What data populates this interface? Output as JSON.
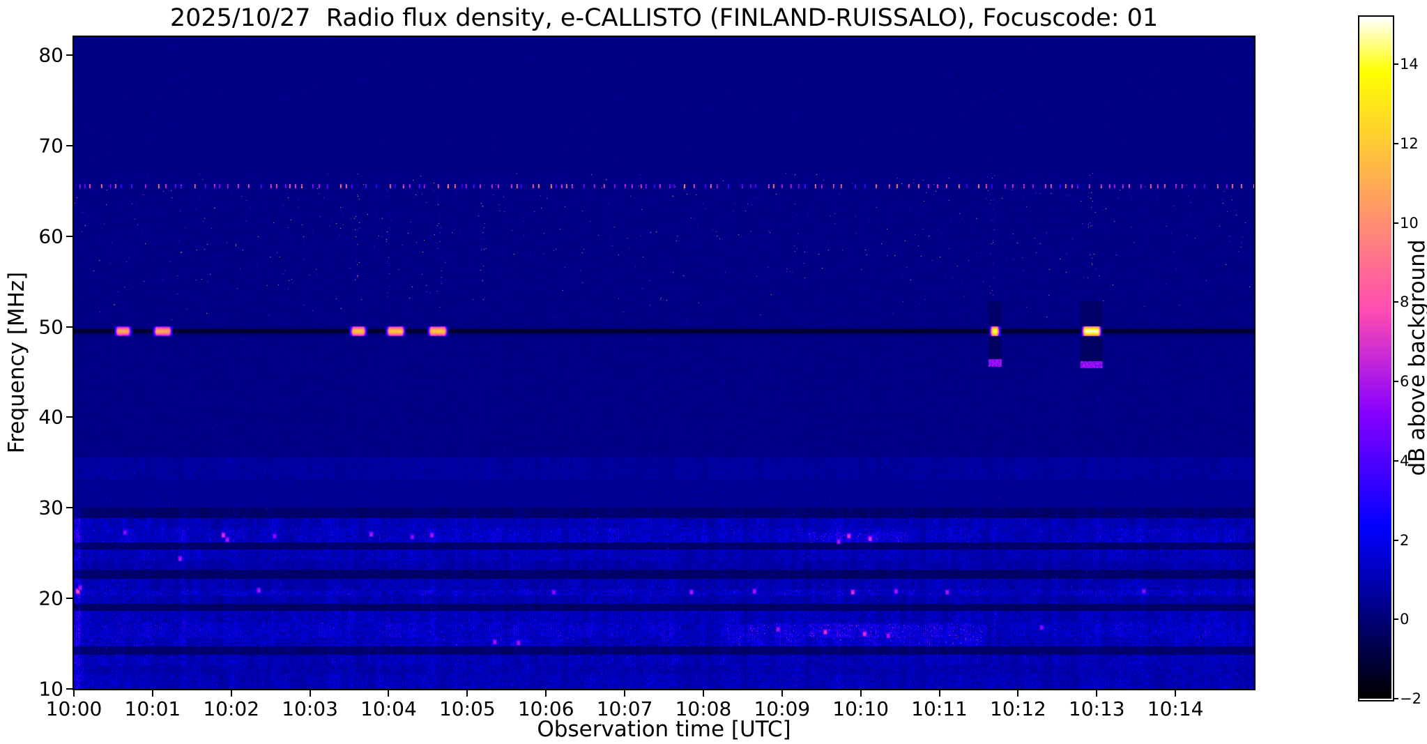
{
  "figure": {
    "title": "2025/10/27  Radio flux density, e-CALLISTO (FINLAND-RUISSALO), Focuscode: 01",
    "xlabel": "Observation time [UTC]",
    "ylabel": "Frequency [MHz]",
    "colorbar_label": "dB above background"
  },
  "chart_data": {
    "type": "heatmap",
    "subtype": "radio_spectrogram",
    "title": "2025/10/27  Radio flux density, e-CALLISTO (FINLAND-RUISSALO), Focuscode: 01",
    "station": "FINLAND-RUISSALO",
    "date": "2025/10/27",
    "focuscode": "01",
    "xlabel": "Observation time [UTC]",
    "ylabel": "Frequency [MHz]",
    "x_tick_labels": [
      "10:00",
      "10:01",
      "10:02",
      "10:03",
      "10:04",
      "10:05",
      "10:06",
      "10:07",
      "10:08",
      "10:09",
      "10:10",
      "10:11",
      "10:12",
      "10:13",
      "10:14"
    ],
    "x_range_minutes_after_10utc": [
      0,
      15
    ],
    "y_tick_values_mhz": [
      10,
      20,
      30,
      40,
      50,
      60,
      70,
      80
    ],
    "y_range_mhz": [
      10,
      82
    ],
    "grid": false,
    "colorbar": {
      "label": "dB above background",
      "tick_values": [
        -2,
        0,
        2,
        4,
        6,
        8,
        10,
        12,
        14
      ],
      "value_range_db": [
        -2,
        15.2
      ],
      "colormap": "gnuplot2"
    },
    "background": {
      "typical_db": 0.3,
      "color_hex": "#0c0c78"
    },
    "features": {
      "instrument_line": {
        "freq_mhz": 49.5,
        "half_width_mhz": 0.22,
        "level_db": -1.5
      },
      "line_bursts": [
        {
          "t_start_min": 0.53,
          "t_end_min": 0.72,
          "peak_db": 11
        },
        {
          "t_start_min": 1.02,
          "t_end_min": 1.24,
          "peak_db": 11
        },
        {
          "t_start_min": 3.52,
          "t_end_min": 3.71,
          "peak_db": 12
        },
        {
          "t_start_min": 3.98,
          "t_end_min": 4.2,
          "peak_db": 12
        },
        {
          "t_start_min": 4.51,
          "t_end_min": 4.74,
          "peak_db": 12
        },
        {
          "t_start_min": 11.65,
          "t_end_min": 11.76,
          "peak_db": 14.5,
          "tail_freq_mhz": 46.0
        },
        {
          "t_start_min": 12.82,
          "t_end_min": 13.05,
          "peak_db": 15.2,
          "tail_freq_mhz": 45.8
        }
      ],
      "speckles_50_67MHz": {
        "f_min_mhz": 50.4,
        "f_max_mhz": 67.0,
        "density": 0.0015,
        "db_min": 3.5,
        "db_max": 13.5
      },
      "speckle_boost_columns_min": [
        3.6,
        4.0,
        4.65,
        5.2,
        11.68,
        12.92
      ],
      "dotted_row": {
        "freq_mhz": 65.5,
        "mean_spacing_px": 13,
        "db_min": 4,
        "db_max": 11
      },
      "band_33_35MHz": {
        "f_min_mhz": 33.2,
        "f_max_mhz": 35.6,
        "level_db": 1.0
      },
      "bright_left_edge_column": {
        "t_max_min": 0.08,
        "boost": 1.8
      },
      "noise_bands_below_30MHz": [
        {
          "f_min": 28.9,
          "f_max": 30.0,
          "level": 0.9
        },
        {
          "f_min": 27.8,
          "f_max": 28.9,
          "level": 1.6
        },
        {
          "f_min": 26.2,
          "f_max": 27.8,
          "level": 1.9,
          "spike_p": 0.004,
          "spike_db": 6
        },
        {
          "f_min": 25.4,
          "f_max": 26.2,
          "level": 0.8
        },
        {
          "f_min": 24.2,
          "f_max": 25.4,
          "level": 1.6,
          "spike_p": 0.002,
          "spike_db": 5
        },
        {
          "f_min": 23.2,
          "f_max": 24.2,
          "level": 1.3
        },
        {
          "f_min": 22.2,
          "f_max": 23.2,
          "level": 0.8
        },
        {
          "f_min": 20.9,
          "f_max": 22.2,
          "level": 1.5,
          "spike_p": 0.002,
          "spike_db": 5
        },
        {
          "f_min": 20.3,
          "f_max": 20.9,
          "level": 2.0,
          "spike_p": 0.006,
          "spike_db": 6
        },
        {
          "f_min": 19.4,
          "f_max": 20.3,
          "level": 1.4
        },
        {
          "f_min": 18.6,
          "f_max": 19.4,
          "level": 0.7
        },
        {
          "f_min": 17.3,
          "f_max": 18.6,
          "level": 1.7,
          "spike_p": 0.002,
          "spike_db": 5
        },
        {
          "f_min": 15.7,
          "f_max": 17.3,
          "level": 2.0,
          "spike_p": 0.005,
          "spike_db": 6
        },
        {
          "f_min": 14.7,
          "f_max": 15.7,
          "level": 1.7,
          "spike_p": 0.003,
          "spike_db": 6
        },
        {
          "f_min": 13.8,
          "f_max": 14.7,
          "level": 0.9
        },
        {
          "f_min": 12.6,
          "f_max": 13.8,
          "level": 1.6,
          "spike_p": 0.002,
          "spike_db": 5
        },
        {
          "f_min": 11.6,
          "f_max": 12.6,
          "level": 1.4
        },
        {
          "f_min": 10.0,
          "f_max": 11.6,
          "level": 1.6,
          "spike_p": 0.002,
          "spike_db": 5
        }
      ],
      "hot_segments": [
        {
          "t_start": 8.3,
          "t_end": 11.6,
          "f_min": 14.8,
          "f_max": 17.2,
          "boost": 2.0
        },
        {
          "t_start": 4.8,
          "t_end": 6.3,
          "f_min": 14.8,
          "f_max": 15.6,
          "boost": 1.6
        },
        {
          "t_start": 9.3,
          "t_end": 10.6,
          "f_min": 26.2,
          "f_max": 27.3,
          "boost": 1.8
        }
      ],
      "bright_spots": [
        {
          "t": 0.05,
          "f": 20.8,
          "db": 8
        },
        {
          "t": 0.08,
          "f": 21.2,
          "db": 6
        },
        {
          "t": 0.65,
          "f": 27.3,
          "db": 5.5
        },
        {
          "t": 1.35,
          "f": 24.4,
          "db": 6
        },
        {
          "t": 1.9,
          "f": 27.0,
          "db": 7
        },
        {
          "t": 1.95,
          "f": 26.5,
          "db": 6
        },
        {
          "t": 2.35,
          "f": 20.9,
          "db": 6
        },
        {
          "t": 2.55,
          "f": 26.9,
          "db": 5.5
        },
        {
          "t": 3.78,
          "f": 27.1,
          "db": 6
        },
        {
          "t": 4.3,
          "f": 26.8,
          "db": 5.5
        },
        {
          "t": 4.55,
          "f": 27.0,
          "db": 6
        },
        {
          "t": 5.35,
          "f": 15.2,
          "db": 6
        },
        {
          "t": 5.65,
          "f": 15.1,
          "db": 6
        },
        {
          "t": 6.1,
          "f": 20.7,
          "db": 5.5
        },
        {
          "t": 7.85,
          "f": 20.7,
          "db": 6
        },
        {
          "t": 8.65,
          "f": 20.8,
          "db": 6
        },
        {
          "t": 8.95,
          "f": 16.6,
          "db": 6
        },
        {
          "t": 9.55,
          "f": 16.3,
          "db": 7
        },
        {
          "t": 9.72,
          "f": 26.3,
          "db": 6
        },
        {
          "t": 9.85,
          "f": 26.9,
          "db": 7
        },
        {
          "t": 9.9,
          "f": 20.7,
          "db": 7
        },
        {
          "t": 10.05,
          "f": 16.1,
          "db": 7
        },
        {
          "t": 10.12,
          "f": 26.6,
          "db": 7
        },
        {
          "t": 10.35,
          "f": 15.9,
          "db": 6
        },
        {
          "t": 10.45,
          "f": 20.8,
          "db": 6
        },
        {
          "t": 11.1,
          "f": 20.7,
          "db": 6
        },
        {
          "t": 12.3,
          "f": 16.8,
          "db": 5.5
        },
        {
          "t": 13.6,
          "f": 20.8,
          "db": 5.5
        }
      ]
    }
  }
}
